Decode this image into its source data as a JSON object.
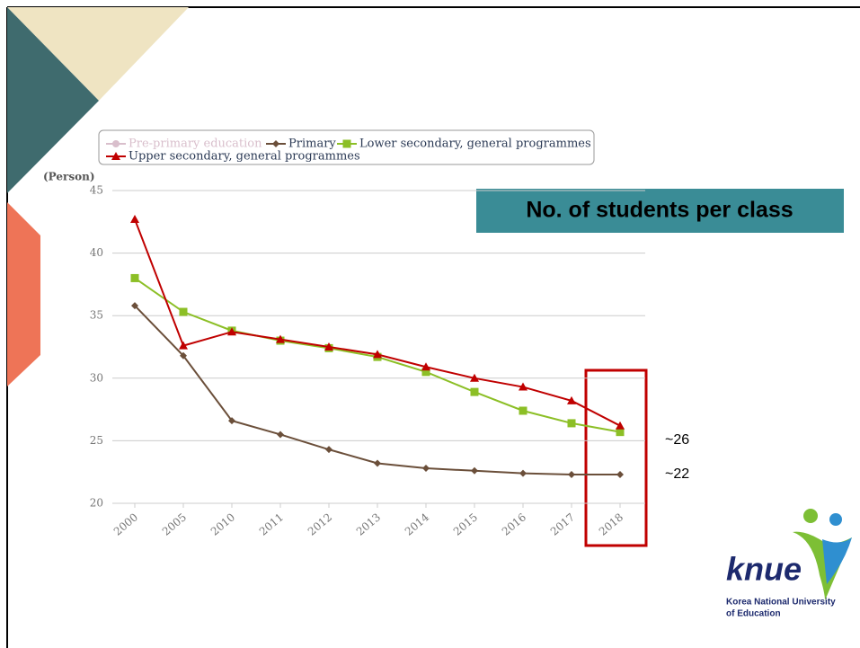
{
  "chart_data": {
    "type": "line",
    "y_axis_label": "(Person)",
    "categories": [
      "2000",
      "2005",
      "2010",
      "2011",
      "2012",
      "2013",
      "2014",
      "2015",
      "2016",
      "2017",
      "2018"
    ],
    "series": [
      {
        "name": "Pre-primary education",
        "color": "#d9bfcc",
        "marker": "circle",
        "values": [
          null,
          null,
          null,
          null,
          null,
          null,
          null,
          null,
          null,
          null,
          null
        ]
      },
      {
        "name": "Primary",
        "color": "#6b4f3a",
        "marker": "diamond",
        "values": [
          35.8,
          31.8,
          26.6,
          25.5,
          24.3,
          23.2,
          22.8,
          22.6,
          22.4,
          22.3,
          22.3
        ]
      },
      {
        "name": "Lower secondary, general programmes",
        "color": "#8cbf26",
        "marker": "square",
        "values": [
          38.0,
          35.3,
          33.8,
          33.0,
          32.4,
          31.7,
          30.5,
          28.9,
          27.4,
          26.4,
          25.7
        ]
      },
      {
        "name": "Upper secondary, general programmes",
        "color": "#c00000",
        "marker": "triangle",
        "values": [
          42.7,
          32.6,
          33.7,
          33.1,
          32.5,
          31.9,
          30.9,
          30.0,
          29.3,
          28.2,
          26.2
        ]
      }
    ],
    "ylim": [
      20,
      45
    ],
    "yticks": [
      20,
      25,
      30,
      35,
      40,
      45
    ],
    "grid": true,
    "annotations": [
      "No. of students per class",
      "~26",
      "~22"
    ]
  },
  "logo": {
    "mark": "knue",
    "lines": [
      "Korea National University",
      "of Education"
    ]
  }
}
